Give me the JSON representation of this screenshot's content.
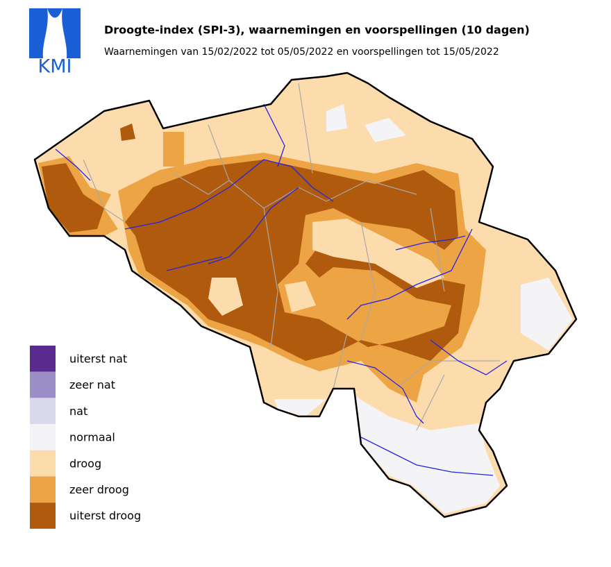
{
  "header": {
    "logo_text": "KMI",
    "title": "Droogte-index (SPI-3), waarnemingen en voorspellingen (10 dagen)",
    "subtitle": "Waarnemingen van 15/02/2022 tot 05/05/2022 en voorspellingen tot 15/05/2022"
  },
  "legend": {
    "items": [
      {
        "label": "uiterst nat",
        "color": "#5b2a8f"
      },
      {
        "label": "zeer nat",
        "color": "#9c8ec6"
      },
      {
        "label": "nat",
        "color": "#d9d9ec"
      },
      {
        "label": "normaal",
        "color": "#f4f3f5"
      },
      {
        "label": "droog",
        "color": "#fcdcad"
      },
      {
        "label": "zeer droog",
        "color": "#eda445"
      },
      {
        "label": "uiterst droog",
        "color": "#b05a0e"
      }
    ]
  }
}
